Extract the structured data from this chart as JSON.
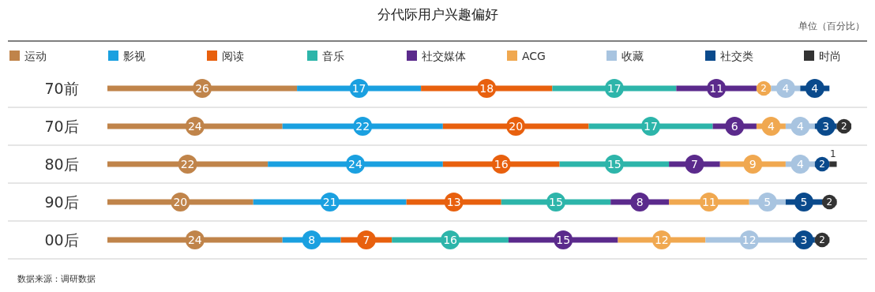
{
  "chart_data": {
    "type": "bar",
    "stacked": true,
    "orientation": "horizontal",
    "data_labels": true,
    "legend": "top",
    "title": "分代际用户兴趣偏好",
    "annotations": [
      "单位（百分比）",
      "数据来源：调研数据"
    ],
    "categories": [
      "70前",
      "70后",
      "80后",
      "90后",
      "00后"
    ],
    "series": [
      {
        "name": "运动",
        "color": "#c0844a",
        "values": [
          26,
          24,
          22,
          20,
          24
        ]
      },
      {
        "name": "影视",
        "color": "#1aa0e0",
        "values": [
          17,
          22,
          24,
          21,
          8
        ]
      },
      {
        "name": "阅读",
        "color": "#e8600e",
        "values": [
          18,
          20,
          16,
          13,
          7
        ]
      },
      {
        "name": "音乐",
        "color": "#2db5aa",
        "values": [
          17,
          17,
          15,
          15,
          16
        ]
      },
      {
        "name": "社交媒体",
        "color": "#5b2a8c",
        "values": [
          11,
          6,
          7,
          8,
          15
        ]
      },
      {
        "name": "ACG",
        "color": "#f0a850",
        "values": [
          2,
          4,
          9,
          11,
          12
        ]
      },
      {
        "name": "收藏",
        "color": "#a8c4e0",
        "values": [
          4,
          4,
          4,
          5,
          12
        ]
      },
      {
        "name": "社交类",
        "color": "#0a4a8c",
        "values": [
          4,
          3,
          2,
          5,
          3
        ]
      },
      {
        "name": "时尚",
        "color": "#333333",
        "values": [
          null,
          2,
          1,
          2,
          2
        ]
      }
    ]
  }
}
